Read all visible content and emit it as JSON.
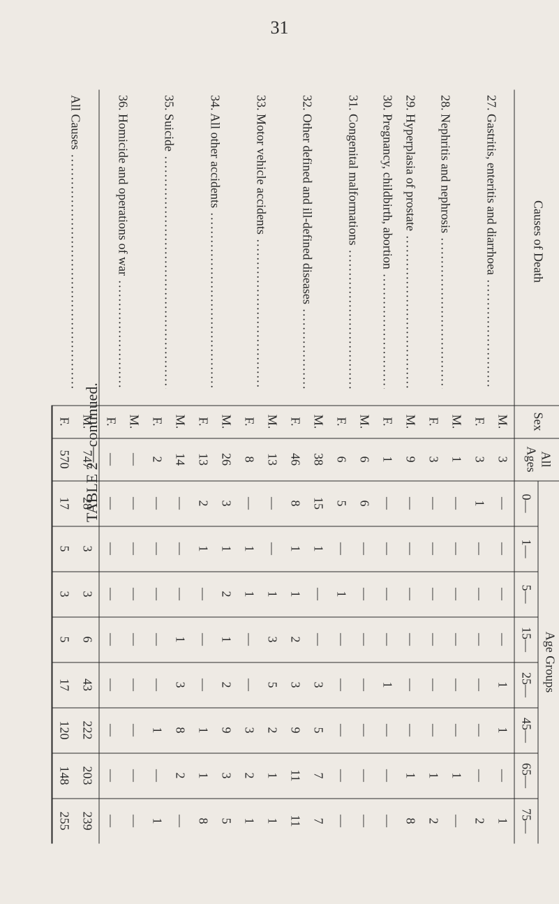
{
  "page_number": "31",
  "side_caption": "TABLE 2—continued.",
  "header": {
    "causes": "Causes of Death",
    "sex": "Sex",
    "all_ages": "All\nAges",
    "age_groups": "Age Groups",
    "age_labels": [
      "0—",
      "1—",
      "5—",
      "15—",
      "25—",
      "45—",
      "65—",
      "75—"
    ]
  },
  "rows": [
    {
      "num": "27.",
      "cause": "Gastritis, enteritis and diarrhoea",
      "sex": [
        "M.",
        "F."
      ],
      "all": [
        "3",
        "3"
      ],
      "ages": [
        [
          "—",
          "1"
        ],
        [
          "—",
          "—"
        ],
        [
          "—",
          "—"
        ],
        [
          "—",
          "—"
        ],
        [
          "1",
          "—"
        ],
        [
          "1",
          "—"
        ],
        [
          "—",
          "—"
        ],
        [
          "1",
          "2"
        ]
      ]
    },
    {
      "num": "28.",
      "cause": "Nephritis and nephrosis",
      "sex": [
        "M.",
        "F."
      ],
      "all": [
        "1",
        "3"
      ],
      "ages": [
        [
          "—",
          "—"
        ],
        [
          "—",
          "—"
        ],
        [
          "—",
          "—"
        ],
        [
          "—",
          "—"
        ],
        [
          "—",
          "—"
        ],
        [
          "—",
          "—"
        ],
        [
          "1",
          "1"
        ],
        [
          "—",
          "2"
        ]
      ]
    },
    {
      "num": "29.",
      "cause": "Hyperplasia of prostate",
      "sex": [
        "M."
      ],
      "all": [
        "9"
      ],
      "ages": [
        [
          "—"
        ],
        [
          "—"
        ],
        [
          "—"
        ],
        [
          "—"
        ],
        [
          "—"
        ],
        [
          "—"
        ],
        [
          "1"
        ],
        [
          "8"
        ]
      ]
    },
    {
      "num": "30.",
      "cause": "Pregnancy, childbirth, abortion",
      "sex": [
        "F."
      ],
      "all": [
        "1"
      ],
      "ages": [
        [
          "—"
        ],
        [
          "—"
        ],
        [
          "—"
        ],
        [
          "—"
        ],
        [
          "1"
        ],
        [
          "—"
        ],
        [
          "—"
        ],
        [
          "—"
        ]
      ]
    },
    {
      "num": "31.",
      "cause": "Congenital malformations",
      "sex": [
        "M.",
        "F."
      ],
      "all": [
        "6",
        "6"
      ],
      "ages": [
        [
          "6",
          "5"
        ],
        [
          "—",
          "—"
        ],
        [
          "—",
          "1"
        ],
        [
          "—",
          "—"
        ],
        [
          "—",
          "—"
        ],
        [
          "—",
          "—"
        ],
        [
          "—",
          "—"
        ],
        [
          "—",
          "—"
        ]
      ]
    },
    {
      "num": "32.",
      "cause": "Other defined and ill-defined diseases",
      "sex": [
        "M.",
        "F."
      ],
      "all": [
        "38",
        "46"
      ],
      "ages": [
        [
          "15",
          "8"
        ],
        [
          "1",
          "1"
        ],
        [
          "—",
          "1"
        ],
        [
          "—",
          "2"
        ],
        [
          "3",
          "3"
        ],
        [
          "5",
          "9"
        ],
        [
          "7",
          "11"
        ],
        [
          "7",
          "11"
        ]
      ]
    },
    {
      "num": "33.",
      "cause": "Motor vehicle accidents",
      "sex": [
        "M.",
        "F."
      ],
      "all": [
        "13",
        "8"
      ],
      "ages": [
        [
          "—",
          "—"
        ],
        [
          "—",
          "1"
        ],
        [
          "1",
          "1"
        ],
        [
          "3",
          "—"
        ],
        [
          "5",
          "—"
        ],
        [
          "2",
          "3"
        ],
        [
          "1",
          "2"
        ],
        [
          "1",
          "1"
        ]
      ]
    },
    {
      "num": "34.",
      "cause": "All other accidents",
      "sex": [
        "M.",
        "F."
      ],
      "all": [
        "26",
        "13"
      ],
      "ages": [
        [
          "3",
          "2"
        ],
        [
          "1",
          "1"
        ],
        [
          "2",
          "—"
        ],
        [
          "1",
          "—"
        ],
        [
          "2",
          "—"
        ],
        [
          "9",
          "1"
        ],
        [
          "3",
          "1"
        ],
        [
          "5",
          "8"
        ]
      ]
    },
    {
      "num": "35.",
      "cause": "Suicide",
      "sex": [
        "M.",
        "F."
      ],
      "all": [
        "14",
        "2"
      ],
      "ages": [
        [
          "—",
          "—"
        ],
        [
          "—",
          "—"
        ],
        [
          "—",
          "—"
        ],
        [
          "1",
          "—"
        ],
        [
          "3",
          "—"
        ],
        [
          "8",
          "1"
        ],
        [
          "2",
          "—"
        ],
        [
          "—",
          "1"
        ]
      ]
    },
    {
      "num": "36.",
      "cause": "Homicide and operations of war",
      "sex": [
        "M.",
        "F."
      ],
      "all": [
        "—",
        "—"
      ],
      "ages": [
        [
          "—",
          "—"
        ],
        [
          "—",
          "—"
        ],
        [
          "—",
          "—"
        ],
        [
          "—",
          "—"
        ],
        [
          "—",
          "—"
        ],
        [
          "—",
          "—"
        ],
        [
          "—",
          "—"
        ],
        [
          "—",
          "—"
        ]
      ]
    }
  ],
  "totals": {
    "label": "All Causes",
    "sex": [
      "M.",
      "F."
    ],
    "all": [
      "747",
      "570"
    ],
    "ages": [
      [
        "28",
        "17"
      ],
      [
        "3",
        "5"
      ],
      [
        "3",
        "3"
      ],
      [
        "6",
        "5"
      ],
      [
        "43",
        "17"
      ],
      [
        "222",
        "120"
      ],
      [
        "203",
        "148"
      ],
      [
        "239",
        "255"
      ]
    ]
  }
}
